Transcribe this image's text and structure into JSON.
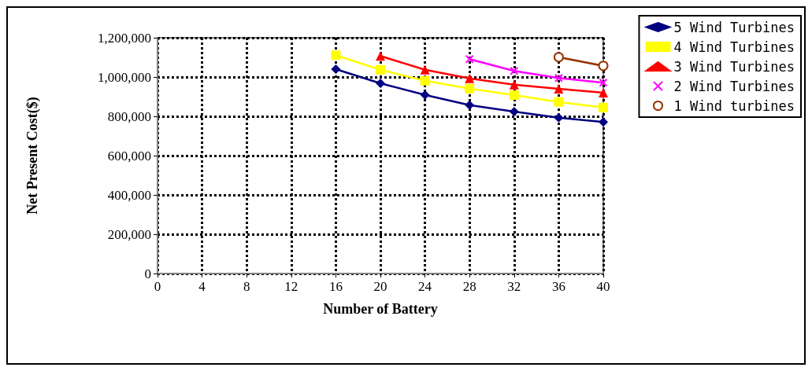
{
  "chart_data": {
    "type": "line",
    "xlabel": "Number of Battery",
    "ylabel": "Net Present Cost($)",
    "xlim": [
      0,
      40
    ],
    "xticks": [
      0,
      4,
      8,
      12,
      16,
      20,
      24,
      28,
      32,
      36,
      40
    ],
    "ylim": [
      0,
      1200000
    ],
    "yticks": [
      {
        "value": 0,
        "label": "0"
      },
      {
        "value": 200000,
        "label": "200,000"
      },
      {
        "value": 400000,
        "label": "400,000"
      },
      {
        "value": 600000,
        "label": "600,000"
      },
      {
        "value": 800000,
        "label": "800,000"
      },
      {
        "value": 1000000,
        "label": "1,000,000"
      },
      {
        "value": 1200000,
        "label": "1,200,000"
      }
    ],
    "grid": true,
    "legend": "top right",
    "line_style": "solid",
    "series": [
      {
        "name": "5 Wind Turbines",
        "color": "#000080",
        "marker": "diamond",
        "x": [
          16,
          20,
          24,
          28,
          32,
          36,
          40
        ],
        "values": [
          1040000,
          968000,
          909000,
          857000,
          824000,
          793000,
          771000
        ]
      },
      {
        "name": "4 Wind Turbines",
        "color": "#ffff00",
        "marker": "square",
        "x": [
          16,
          20,
          24,
          28,
          32,
          36,
          40
        ],
        "values": [
          1111000,
          1037000,
          981000,
          941000,
          908000,
          873000,
          845000
        ]
      },
      {
        "name": "3 Wind Turbines",
        "color": "#ff0000",
        "marker": "triangle",
        "x": [
          20,
          24,
          28,
          32,
          36,
          40
        ],
        "values": [
          1107000,
          1037000,
          993000,
          961000,
          940000,
          920000
        ]
      },
      {
        "name": "2 Wind Turbines",
        "color": "#ff00ff",
        "marker": "cross",
        "x": [
          28,
          32,
          36,
          40
        ],
        "values": [
          1091000,
          1031000,
          995000,
          971000
        ]
      },
      {
        "name": "1 Wind turbines",
        "color": "#993300",
        "marker": "circle",
        "x": [
          36,
          40
        ],
        "values": [
          1101000,
          1057000
        ]
      }
    ]
  }
}
